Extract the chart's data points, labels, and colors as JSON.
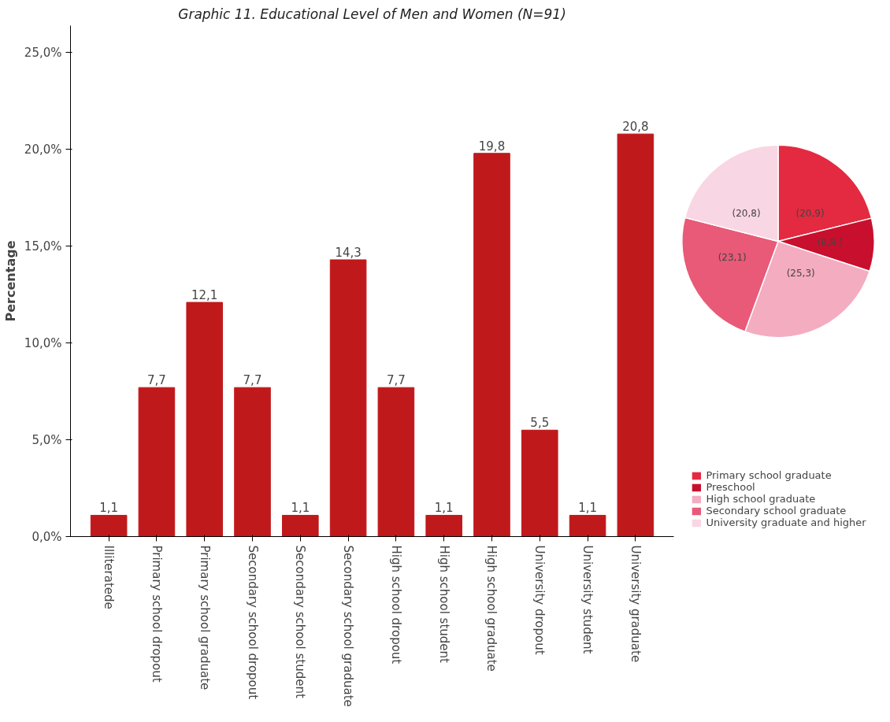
{
  "chart_data": [
    {
      "type": "bar",
      "title": "Graphic 11. Educational Level of Men and Women (N=91)",
      "ylabel": "Percentage",
      "categories": [
        "Illiteratede",
        "Primary school dropout",
        "Primary school graduate",
        "Secondary school dropout",
        "Secondary school student",
        "Secondary school graduate",
        "High school dropout",
        "High school student",
        "High school graduate",
        "University dropout",
        "University student",
        "University graduate"
      ],
      "values": [
        1.1,
        7.7,
        12.1,
        7.7,
        1.1,
        14.3,
        7.7,
        1.1,
        19.8,
        5.5,
        1.1,
        20.8
      ],
      "value_labels": [
        "1,1",
        "7,7",
        "12,1",
        "7,7",
        "1,1",
        "14,3",
        "7,7",
        "1,1",
        "19,8",
        "5,5",
        "1,1",
        "20,8"
      ],
      "color": "#c0191c",
      "ylim": [
        0,
        26.4
      ],
      "yticks": [
        {
          "value": 0,
          "label": "0,0%"
        },
        {
          "value": 5,
          "label": "5,0%"
        },
        {
          "value": 10,
          "label": "10,0%"
        },
        {
          "value": 15,
          "label": "15,0%"
        },
        {
          "value": 20,
          "label": "20,0%"
        },
        {
          "value": 25,
          "label": "25,0%"
        }
      ],
      "grid": false,
      "legend": false
    },
    {
      "type": "pie",
      "categories": [
        "Primary school graduate",
        "Preschool",
        "High school graduate",
        "Secondary school graduate",
        "University graduate and higher"
      ],
      "values": [
        20.9,
        8.8,
        25.3,
        23.1,
        20.8
      ],
      "value_labels": [
        "(20,9)",
        "(8,8 )",
        "(25,3)",
        "(23,1)",
        "(20,8)"
      ],
      "colors": [
        "#e42a40",
        "#c8102e",
        "#f4acc0",
        "#e85a78",
        "#f9d6e3"
      ],
      "legend": "bottom"
    }
  ]
}
